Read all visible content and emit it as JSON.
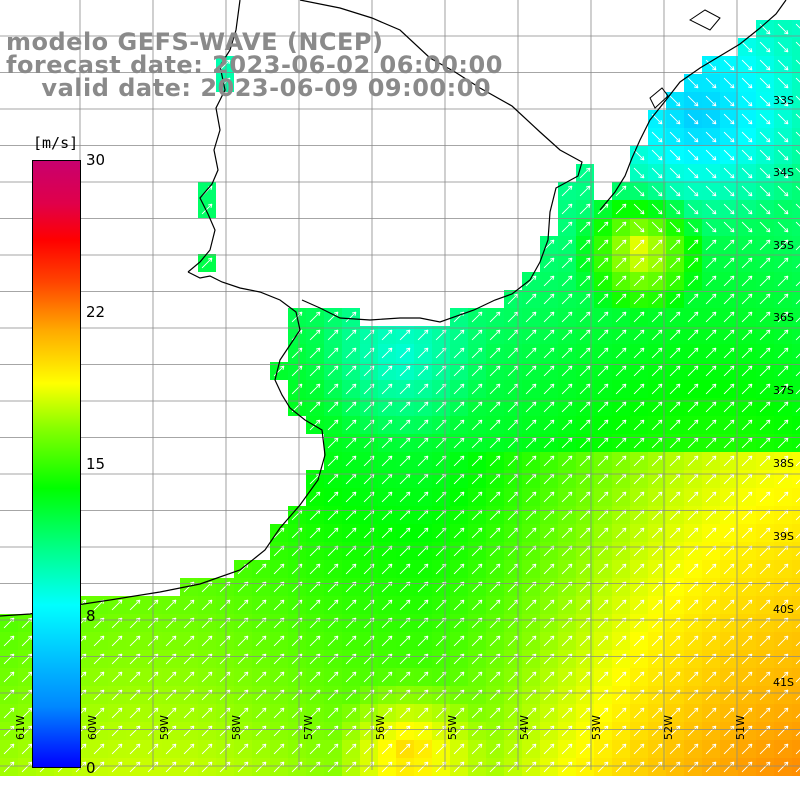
{
  "title": {
    "line1": "modelo GEFS-WAVE (NCEP)",
    "line2": "forecast date: 2023-06-02 06:00:00",
    "line3": "    valid date: 2023-06-09 09:00:00"
  },
  "colorbar": {
    "unit": "[m/s]",
    "ticks": [
      "30",
      "22",
      "15",
      "8",
      "0"
    ]
  },
  "lat_labels": [
    "33S",
    "34S",
    "35S",
    "36S",
    "37S",
    "38S",
    "39S",
    "40S",
    "41S"
  ],
  "lon_labels": [
    "61W",
    "60W",
    "59W",
    "58W",
    "57W",
    "56W",
    "55W",
    "54W",
    "53W",
    "52W",
    "51W"
  ],
  "colors": {
    "title_gray": "#8a8a8a",
    "grid": "#888888",
    "coast": "#000000",
    "arrow": "#ffffff"
  }
}
